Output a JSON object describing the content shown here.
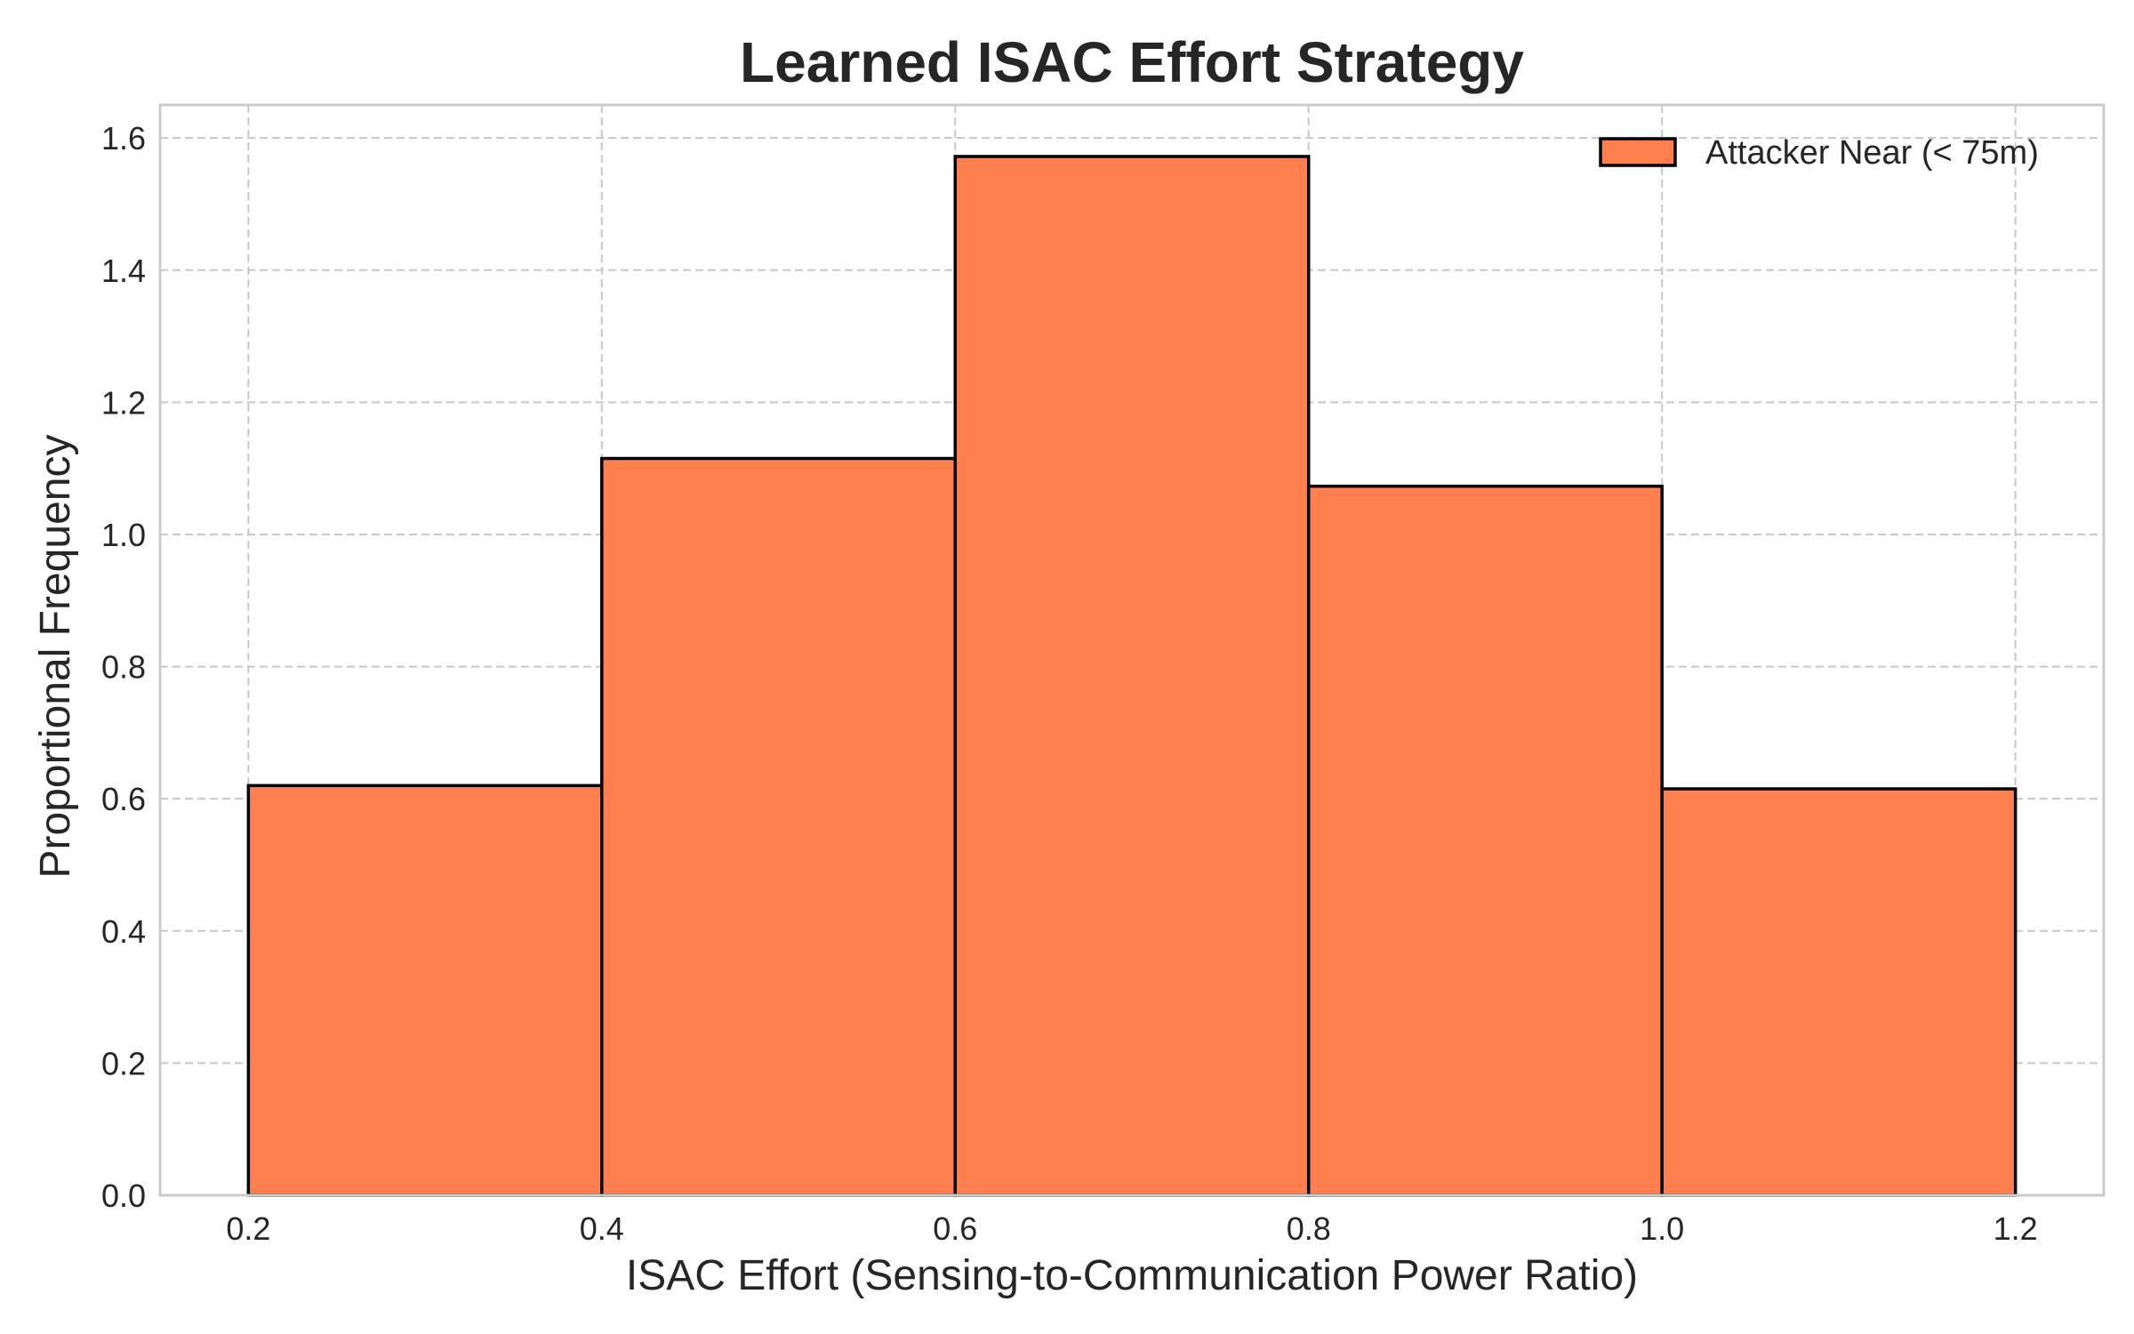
{
  "chart_data": {
    "type": "bar",
    "title": "Learned ISAC Effort Strategy",
    "xlabel": "ISAC Effort (Sensing-to-Communication Power Ratio)",
    "ylabel": "Proportional Frequency",
    "bin_edges": [
      0.2,
      0.4,
      0.6,
      0.8,
      1.0,
      1.2
    ],
    "values": [
      0.62,
      1.115,
      1.572,
      1.073,
      0.615
    ],
    "xlim": [
      0.15,
      1.25
    ],
    "ylim": [
      0.0,
      1.65
    ],
    "xticks": [
      0.2,
      0.4,
      0.6,
      0.8,
      1.0,
      1.2
    ],
    "xtick_labels": [
      "0.2",
      "0.4",
      "0.6",
      "0.8",
      "1.0",
      "1.2"
    ],
    "yticks": [
      0.0,
      0.2,
      0.4,
      0.6,
      0.8,
      1.0,
      1.2,
      1.4,
      1.6
    ],
    "ytick_labels": [
      "0.0",
      "0.2",
      "0.4",
      "0.6",
      "0.8",
      "1.0",
      "1.2",
      "1.4",
      "1.6"
    ],
    "grid": true,
    "legend": {
      "position": "top-right",
      "entries": [
        {
          "label": "Attacker Near (< 75m)",
          "color": "#ff7f4f"
        }
      ]
    },
    "series": [
      {
        "name": "Attacker Near (< 75m)",
        "color": "#ff7f4f",
        "edge_color": "#000000"
      }
    ]
  }
}
